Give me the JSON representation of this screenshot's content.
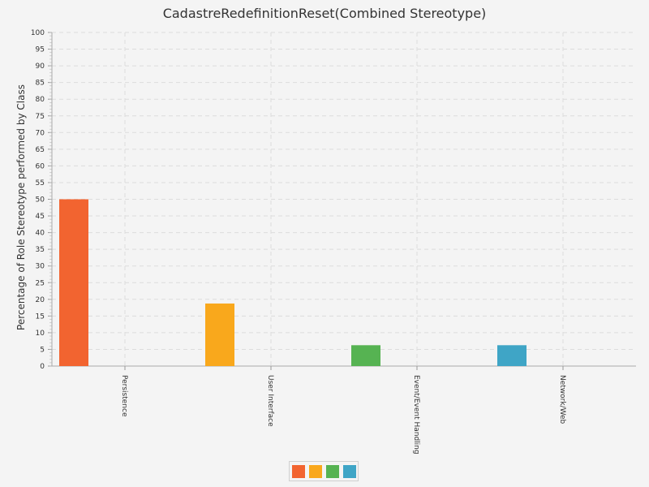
{
  "chart_data": {
    "type": "bar",
    "title": "CadastreRedefinitionReset(Combined Stereotype)",
    "xlabel": "",
    "ylabel": "Percentage of Role Stereotype performed by Class",
    "ylim": [
      0,
      100
    ],
    "yticks": [
      0,
      5,
      10,
      15,
      20,
      25,
      30,
      35,
      40,
      45,
      50,
      55,
      60,
      65,
      70,
      75,
      80,
      85,
      90,
      95,
      100
    ],
    "categories": [
      "Persistence",
      "User Interface",
      "Event/Event Handling",
      "Network/Web"
    ],
    "values": [
      50,
      18.75,
      6.25,
      6.25
    ],
    "colors": [
      "#f26430",
      "#f9a81c",
      "#56b352",
      "#3fa5c6"
    ],
    "grid": true,
    "legend_placement": "bottom-center"
  }
}
